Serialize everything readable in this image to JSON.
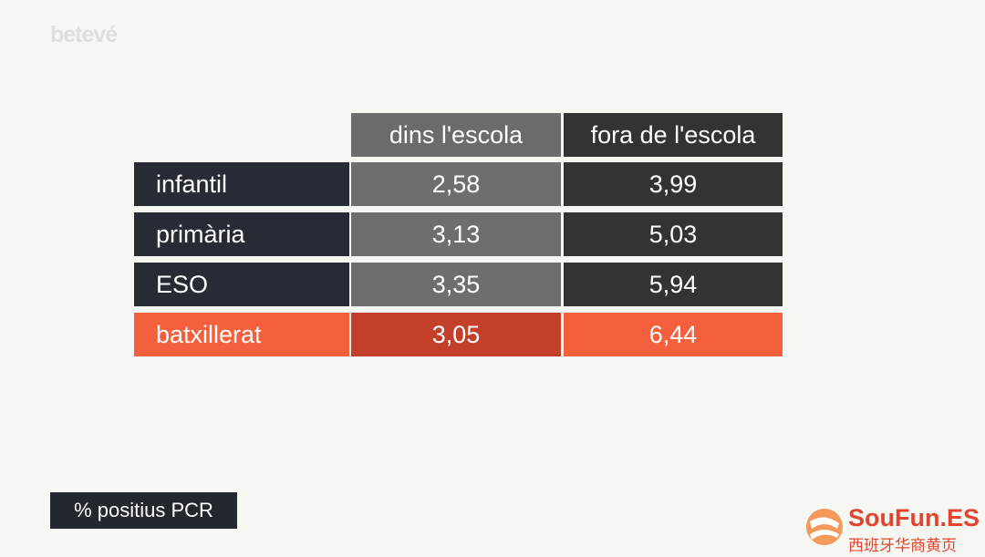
{
  "logo": "betevé",
  "table": {
    "columns": [
      "dins l'escola",
      "fora de l'escola"
    ],
    "rows": [
      [
        "infantil",
        "2,58",
        "3,99"
      ],
      [
        "primària",
        "3,13",
        "5,03"
      ],
      [
        "ESO",
        "3,35",
        "5,94"
      ],
      [
        "batxillerat",
        "3,05",
        "6,44"
      ]
    ]
  },
  "footer": "% positius PCR",
  "watermark": {
    "brand": "SouFun.ES",
    "subtitle": "西班牙华商黄页"
  }
}
